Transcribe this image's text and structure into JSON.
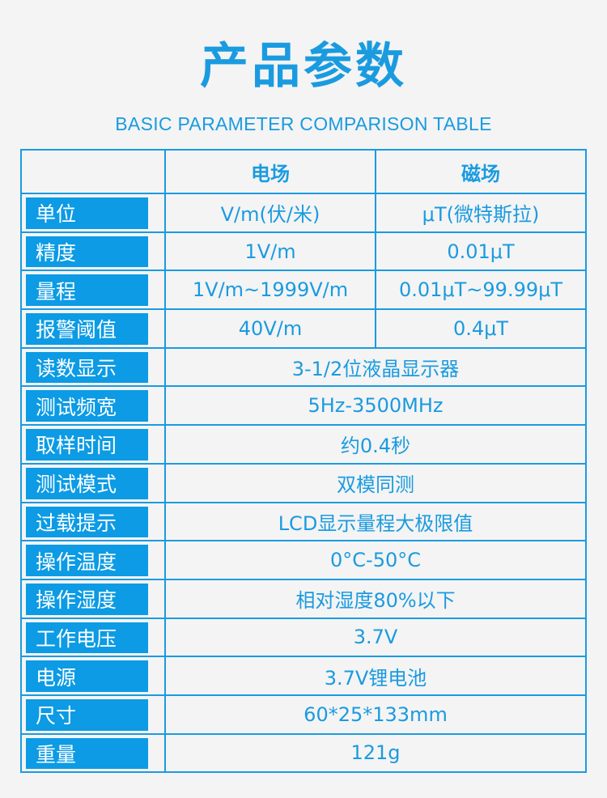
{
  "title": "产品参数",
  "subtitle": "BASIC PARAMETER COMPARISON TABLE",
  "accent_color": "#1a9be0",
  "table": {
    "headers": [
      "",
      "电场",
      "磁场"
    ],
    "rows": [
      {
        "label": "单位",
        "electric": "V/m(伏/米)",
        "magnetic": "μT(微特斯拉)"
      },
      {
        "label": "精度",
        "electric": "1V/m",
        "magnetic": "0.01μT"
      },
      {
        "label": "量程",
        "electric": "1V/m~1999V/m",
        "magnetic": "0.01μT~99.99μT"
      },
      {
        "label": "报警阈值",
        "electric": "40V/m",
        "magnetic": "0.4μT"
      },
      {
        "label": "读数显示",
        "value": "3-1/2位液晶显示器"
      },
      {
        "label": "测试频宽",
        "value": "5Hz-3500MHz"
      },
      {
        "label": "取样时间",
        "value": "约0.4秒"
      },
      {
        "label": "测试模式",
        "value": "双模同测"
      },
      {
        "label": "过载提示",
        "value": "LCD显示量程大极限值"
      },
      {
        "label": "操作温度",
        "value": "0°C-50°C"
      },
      {
        "label": "操作湿度",
        "value": "相对湿度80%以下"
      },
      {
        "label": "工作电压",
        "value": "3.7V"
      },
      {
        "label": "电源",
        "value": "3.7V锂电池"
      },
      {
        "label": "尺寸",
        "value": "60*25*133mm"
      },
      {
        "label": "重量",
        "value": "121g"
      }
    ]
  }
}
